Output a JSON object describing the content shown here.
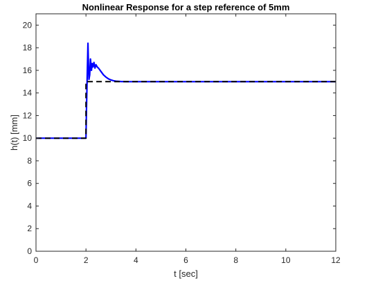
{
  "chart_data": {
    "type": "line",
    "title": "Nonlinear Response for a step reference of 5mm",
    "xlabel": "t [sec]",
    "ylabel": "h(t) [mm]",
    "xlim": [
      0,
      12
    ],
    "ylim": [
      0,
      21
    ],
    "x_ticks": [
      "0",
      "2",
      "4",
      "6",
      "8",
      "10",
      "12"
    ],
    "y_ticks": [
      "0",
      "2",
      "4",
      "6",
      "8",
      "10",
      "12",
      "14",
      "16",
      "18",
      "20"
    ],
    "grid": false,
    "legend": "none",
    "series": [
      {
        "style": "solid",
        "color": "#0000ff",
        "x": [
          0,
          2.0,
          2.02,
          2.05,
          2.08,
          2.1,
          2.12,
          2.15,
          2.18,
          2.22,
          2.25,
          2.28,
          2.32,
          2.36,
          2.4,
          2.45,
          2.5,
          2.6,
          2.7,
          2.8,
          2.9,
          3.0,
          3.1,
          3.2,
          3.4,
          3.6,
          4.0,
          5.0,
          12.0
        ],
        "y": [
          10.0,
          10.0,
          12.5,
          15.5,
          18.4,
          16.5,
          15.2,
          15.6,
          17.0,
          16.0,
          16.6,
          16.3,
          16.7,
          16.2,
          16.5,
          16.3,
          16.2,
          15.9,
          15.6,
          15.4,
          15.25,
          15.15,
          15.08,
          15.04,
          15.01,
          15.0,
          15.0,
          15.0,
          15.0
        ]
      },
      {
        "style": "dashed",
        "color": "#000000",
        "x": [
          0,
          2.0,
          2.0,
          12.0
        ],
        "y": [
          10.0,
          10.0,
          15.0,
          15.0
        ]
      }
    ]
  }
}
